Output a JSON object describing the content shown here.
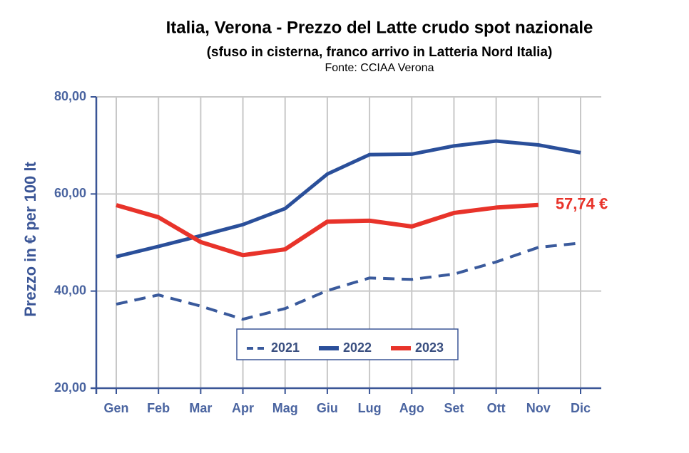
{
  "chart_data": {
    "type": "line",
    "title": "Italia, Verona - Prezzo del Latte crudo spot nazionale",
    "subtitle": "(sfuso in cisterna, franco arrivo in Latteria Nord Italia)",
    "source": "Fonte: CCIAA Verona",
    "y_label": "Prezzo in € per 100 lt",
    "categories": [
      "Gen",
      "Feb",
      "Mar",
      "Apr",
      "Mag",
      "Giu",
      "Lug",
      "Ago",
      "Set",
      "Ott",
      "Nov",
      "Dic"
    ],
    "series": [
      {
        "name": "2021",
        "color": "#3a5a9c",
        "dashed": true,
        "values": [
          37.3,
          39.2,
          36.9,
          34.2,
          36.4,
          40.1,
          42.7,
          42.4,
          43.5,
          46.0,
          49.0,
          49.9
        ]
      },
      {
        "name": "2022",
        "color": "#2a4f9a",
        "dashed": false,
        "values": [
          47.1,
          49.2,
          51.4,
          53.7,
          57.0,
          64.1,
          68.1,
          68.2,
          69.9,
          70.9,
          70.1,
          68.5
        ]
      },
      {
        "name": "2023",
        "color": "#e8332a",
        "dashed": false,
        "values": [
          57.7,
          55.2,
          50.1,
          47.4,
          48.6,
          54.3,
          54.5,
          53.3,
          56.1,
          57.2,
          57.74,
          null
        ]
      }
    ],
    "annotation": {
      "series": 2,
      "index": 10,
      "value_label": "57,74 €"
    },
    "ylim": [
      20,
      80
    ],
    "yticks": [
      {
        "value": 20,
        "label": "20,00"
      },
      {
        "value": 40,
        "label": "40,00"
      },
      {
        "value": 60,
        "label": "60,00"
      },
      {
        "value": 80,
        "label": "80,00"
      }
    ],
    "grid": true
  }
}
